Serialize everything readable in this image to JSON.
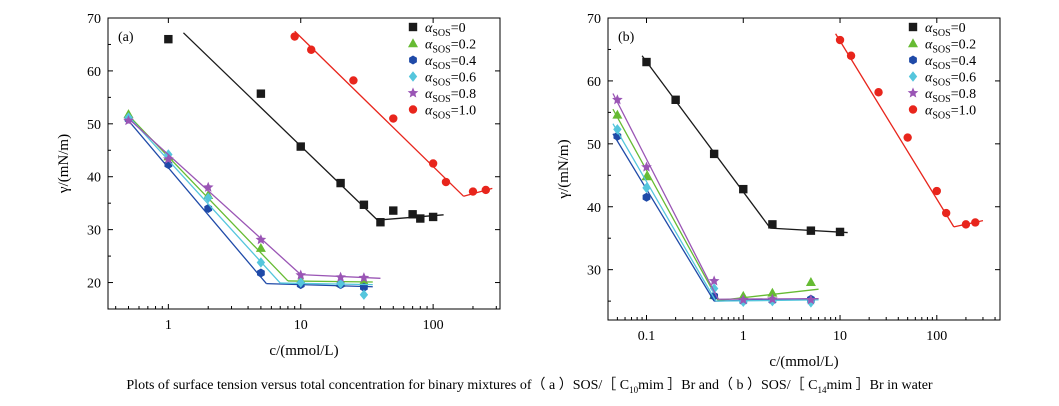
{
  "caption": {
    "t1": "Plots of surface tension versus total concentration for binary mixtures of（ a ）SOS/［ C",
    "s1": "10",
    "t2": "mim ］Br and（ b ）SOS/［ C",
    "s2": "14",
    "t3": "mim ］Br in water"
  },
  "chart_data": [
    {
      "panel_label": "(a)",
      "type": "scatter",
      "xscale": "log",
      "xlabel_main": "c/(mmol/L)",
      "ylabel_main": "γ/(mN/m)",
      "xlim": [
        0.35,
        320
      ],
      "ylim": [
        15,
        70
      ],
      "xticks": [
        1,
        10,
        100
      ],
      "xtick_labels": [
        "1",
        "10",
        "100"
      ],
      "yticks": [
        20,
        30,
        40,
        50,
        60,
        70
      ],
      "ytick_labels": [
        "20",
        "30",
        "40",
        "50",
        "60",
        "70"
      ],
      "legend_placement": "top-right",
      "series": [
        {
          "name": "αSOS=0",
          "alpha": "0",
          "color": "#1a1a1a",
          "marker": "square",
          "points": [
            [
              1,
              66
            ],
            [
              5,
              55.7
            ],
            [
              10,
              45.7
            ],
            [
              20,
              38.8
            ],
            [
              30,
              34.7
            ],
            [
              40,
              31.4
            ],
            [
              50,
              33.6
            ],
            [
              70,
              32.9
            ],
            [
              80,
              32.1
            ],
            [
              100,
              32.4
            ]
          ],
          "fit": [
            [
              [
                1.3,
                67.2
              ],
              [
                38,
                31.8
              ]
            ],
            [
              [
                38,
                31.8
              ],
              [
                120,
                32.8
              ]
            ]
          ]
        },
        {
          "name": "αSOS=0.2",
          "alpha": "0.2",
          "color": "#66bb33",
          "marker": "triangle",
          "points": [
            [
              0.5,
              51.8
            ],
            [
              1,
              43.8
            ],
            [
              2,
              36.5
            ],
            [
              5,
              26.5
            ],
            [
              10,
              20.4
            ],
            [
              20,
              19.9
            ],
            [
              30,
              20.2
            ]
          ],
          "fit": [
            [
              [
                0.5,
                51.6
              ],
              [
                8,
                20.3
              ]
            ],
            [
              [
                8,
                20.3
              ],
              [
                35,
                20.1
              ]
            ]
          ]
        },
        {
          "name": "αSOS=0.4",
          "alpha": "0.4",
          "color": "#1f4aa8",
          "marker": "hexagon",
          "points": [
            [
              0.5,
              50.9
            ],
            [
              1,
              42.3
            ],
            [
              2,
              34
            ],
            [
              5,
              21.8
            ],
            [
              10,
              19.6
            ],
            [
              20,
              19.6
            ],
            [
              30,
              19.1
            ]
          ],
          "fit": [
            [
              [
                0.5,
                50.6
              ],
              [
                5.5,
                19.8
              ]
            ],
            [
              [
                5.5,
                19.8
              ],
              [
                35,
                19.2
              ]
            ]
          ]
        },
        {
          "name": "αSOS=0.6",
          "alpha": "0.6",
          "color": "#55c6dd",
          "marker": "diamond",
          "points": [
            [
              0.5,
              51.2
            ],
            [
              1,
              44.2
            ],
            [
              2,
              36
            ],
            [
              5,
              23.8
            ],
            [
              10,
              20
            ],
            [
              20,
              19.8
            ],
            [
              30,
              17.7
            ]
          ],
          "fit": [
            [
              [
                0.5,
                51.4
              ],
              [
                7,
                19.9
              ]
            ],
            [
              [
                7,
                19.9
              ],
              [
                35,
                19.6
              ]
            ]
          ]
        },
        {
          "name": "αSOS=0.8",
          "alpha": "0.8",
          "color": "#9a55b5",
          "marker": "star",
          "points": [
            [
              0.5,
              50.6
            ],
            [
              1,
              43.3
            ],
            [
              2,
              38
            ],
            [
              5,
              28.1
            ],
            [
              10,
              21.4
            ],
            [
              20,
              21
            ],
            [
              30,
              20.9
            ]
          ],
          "fit": [
            [
              [
                0.5,
                51
              ],
              [
                10,
                21.5
              ]
            ],
            [
              [
                10,
                21.5
              ],
              [
                40,
                20.8
              ]
            ]
          ]
        },
        {
          "name": "αSOS=1.0",
          "alpha": "1.0",
          "color": "#e8251c",
          "marker": "circle",
          "points": [
            [
              9,
              66.5
            ],
            [
              12,
              64
            ],
            [
              25,
              58.2
            ],
            [
              50,
              51
            ],
            [
              100,
              42.5
            ],
            [
              125,
              39
            ],
            [
              200,
              37.2
            ],
            [
              250,
              37.5
            ]
          ],
          "fit": [
            [
              [
                9,
                67.5
              ],
              [
                170,
                36.3
              ]
            ],
            [
              [
                170,
                36.3
              ],
              [
                280,
                37.8
              ]
            ]
          ]
        }
      ]
    },
    {
      "panel_label": "(b)",
      "type": "scatter",
      "xscale": "log",
      "xlabel_main": "c/(mmol/L)",
      "ylabel_main": "γ/(mN/m)",
      "xlim": [
        0.04,
        450
      ],
      "ylim": [
        22,
        70
      ],
      "xticks": [
        0.1,
        1,
        10,
        100
      ],
      "xtick_labels": [
        "0.1",
        "1",
        "10",
        "100"
      ],
      "yticks": [
        30,
        40,
        50,
        60,
        70
      ],
      "ytick_labels": [
        "30",
        "40",
        "50",
        "60",
        "70"
      ],
      "legend_placement": "top-right",
      "series": [
        {
          "name": "αSOS=0",
          "alpha": "0",
          "color": "#1a1a1a",
          "marker": "square",
          "points": [
            [
              0.1,
              63
            ],
            [
              0.2,
              57
            ],
            [
              0.5,
              48.4
            ],
            [
              1,
              42.8
            ],
            [
              2,
              37.2
            ],
            [
              5,
              36.2
            ],
            [
              10,
              36
            ]
          ],
          "fit": [
            [
              [
                0.09,
                64
              ],
              [
                1.9,
                36.6
              ]
            ],
            [
              [
                1.9,
                36.6
              ],
              [
                12,
                35.9
              ]
            ]
          ]
        },
        {
          "name": "αSOS=0.2",
          "alpha": "0.2",
          "color": "#66bb33",
          "marker": "triangle",
          "points": [
            [
              0.05,
              54.6
            ],
            [
              0.1,
              44.8
            ],
            [
              0.5,
              25.9
            ],
            [
              1,
              25.8
            ],
            [
              2,
              26.3
            ],
            [
              5,
              28
            ]
          ],
          "fit": [
            [
              [
                0.045,
                55.5
              ],
              [
                0.55,
                25.1
              ]
            ],
            [
              [
                0.55,
                25.1
              ],
              [
                6,
                26.9
              ]
            ]
          ]
        },
        {
          "name": "αSOS=0.4",
          "alpha": "0.4",
          "color": "#1f4aa8",
          "marker": "hexagon",
          "points": [
            [
              0.05,
              51.2
            ],
            [
              0.1,
              41.5
            ],
            [
              0.5,
              25.8
            ],
            [
              1,
              25
            ],
            [
              2,
              25.1
            ],
            [
              5,
              25.3
            ]
          ],
          "fit": [
            [
              [
                0.045,
                51.6
              ],
              [
                0.5,
                25
              ]
            ],
            [
              [
                0.5,
                25
              ],
              [
                6,
                25.4
              ]
            ]
          ]
        },
        {
          "name": "αSOS=0.6",
          "alpha": "0.6",
          "color": "#55c6dd",
          "marker": "diamond",
          "points": [
            [
              0.05,
              52.3
            ],
            [
              0.1,
              43
            ],
            [
              0.5,
              27
            ],
            [
              1,
              24.9
            ],
            [
              2,
              25
            ],
            [
              5,
              24.8
            ]
          ],
          "fit": [
            [
              [
                0.045,
                53.2
              ],
              [
                0.52,
                25
              ]
            ],
            [
              [
                0.52,
                25
              ],
              [
                6,
                25.2
              ]
            ]
          ]
        },
        {
          "name": "αSOS=0.8",
          "alpha": "0.8",
          "color": "#9a55b5",
          "marker": "star",
          "points": [
            [
              0.05,
              57
            ],
            [
              0.1,
              46.3
            ],
            [
              0.5,
              28.2
            ],
            [
              1,
              25.2
            ],
            [
              2,
              25.3
            ],
            [
              5,
              25.2
            ]
          ],
          "fit": [
            [
              [
                0.045,
                58
              ],
              [
                0.55,
                25.3
              ]
            ],
            [
              [
                0.55,
                25.3
              ],
              [
                6,
                25.4
              ]
            ]
          ]
        },
        {
          "name": "αSOS=1.0",
          "alpha": "1.0",
          "color": "#e8251c",
          "marker": "circle",
          "points": [
            [
              10,
              66.5
            ],
            [
              13,
              64
            ],
            [
              25,
              58.2
            ],
            [
              50,
              51
            ],
            [
              100,
              42.5
            ],
            [
              125,
              39
            ],
            [
              200,
              37.2
            ],
            [
              250,
              37.5
            ]
          ],
          "fit": [
            [
              [
                9,
                67.5
              ],
              [
                150,
                36.8
              ]
            ],
            [
              [
                150,
                36.8
              ],
              [
                300,
                37.8
              ]
            ]
          ]
        }
      ]
    }
  ]
}
